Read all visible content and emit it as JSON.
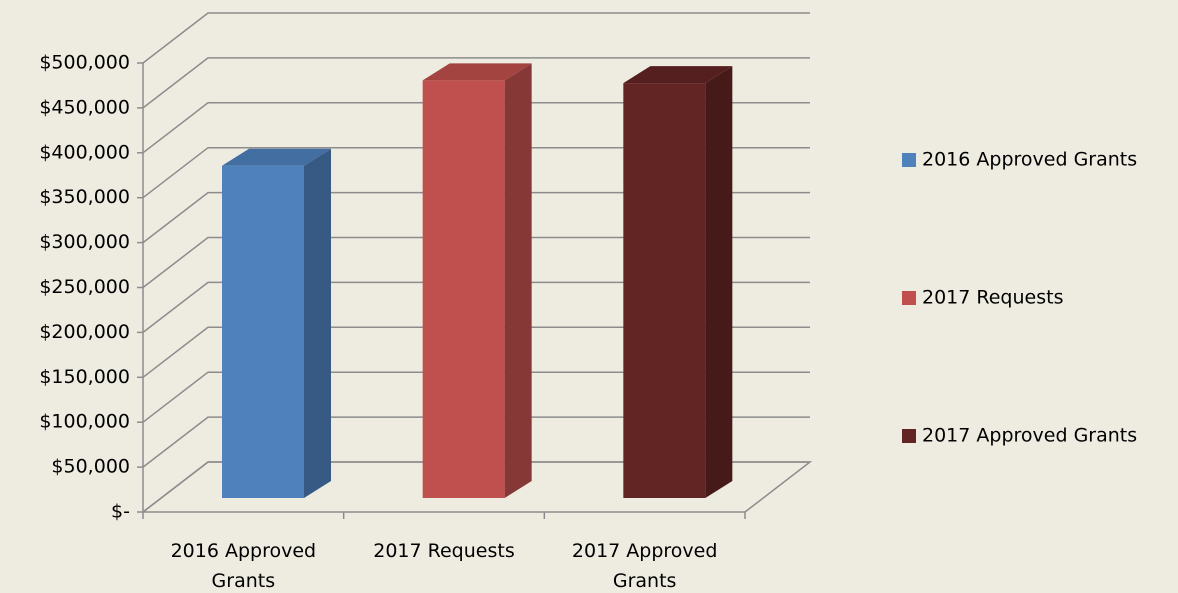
{
  "chart_data": {
    "type": "bar3d",
    "categories": [
      "2016 Approved Grants",
      "2017 Requests",
      "2017 Approved Grants"
    ],
    "values": [
      370000,
      465000,
      462000
    ],
    "colors": [
      "#4f81bd",
      "#c0504d",
      "#632523"
    ],
    "ylim": [
      0,
      500000
    ],
    "yticks": [
      {
        "value": 0,
        "label": "$-"
      },
      {
        "value": 50000,
        "label": "$50,000"
      },
      {
        "value": 100000,
        "label": "$100,000"
      },
      {
        "value": 150000,
        "label": "$150,000"
      },
      {
        "value": 200000,
        "label": "$200,000"
      },
      {
        "value": 250000,
        "label": "$250,000"
      },
      {
        "value": 300000,
        "label": "$300,000"
      },
      {
        "value": 350000,
        "label": "$350,000"
      },
      {
        "value": 400000,
        "label": "$400,000"
      },
      {
        "value": 450000,
        "label": "$450,000"
      },
      {
        "value": 500000,
        "label": "$500,000"
      }
    ],
    "grid": true,
    "legend": "right"
  }
}
